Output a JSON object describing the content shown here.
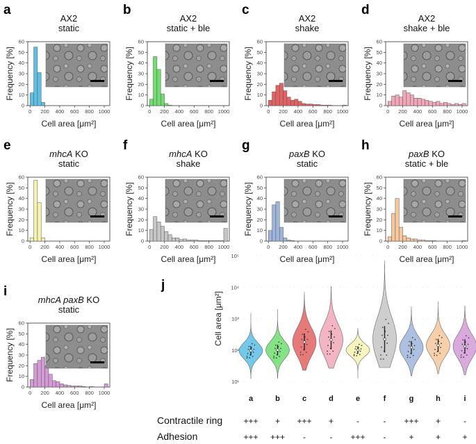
{
  "figure": {
    "panels": [
      {
        "letter": "a",
        "title_line1": "AX2",
        "title_line2": "static",
        "color": "#5bbfe6",
        "values": [
          12,
          55,
          31,
          3,
          0,
          0,
          0,
          0,
          0,
          0,
          0,
          0,
          0,
          0,
          0,
          0,
          0,
          0,
          0,
          0,
          0
        ]
      },
      {
        "letter": "b",
        "title_line1": "AX2",
        "title_line2": "static + ble",
        "color": "#6fde6f",
        "values": [
          6,
          46,
          34,
          11,
          2,
          0.5,
          0,
          0,
          0,
          0,
          0,
          0,
          0,
          0,
          0,
          0,
          0,
          0,
          0,
          0,
          0
        ]
      },
      {
        "letter": "c",
        "title_line1": "AX2",
        "title_line2": "shake",
        "color": "#e46262",
        "values": [
          5,
          13,
          19,
          21,
          14,
          8,
          5,
          6,
          4,
          2,
          1.5,
          1.5,
          1,
          1,
          0.5,
          0.5,
          0.5,
          0,
          0,
          0,
          0.5
        ]
      },
      {
        "letter": "d",
        "title_line1": "AX2",
        "title_line2": "shake + ble",
        "color": "#f2a8b8",
        "values": [
          4,
          9,
          10,
          8,
          14,
          12,
          10,
          7,
          7,
          6,
          5,
          4,
          3,
          4,
          2,
          3,
          2,
          1,
          2,
          1,
          2
        ]
      },
      {
        "letter": "e",
        "title_line1_italic": "mhcA",
        "title_line1": " KO",
        "title_line2": "static",
        "color": "#f6f2b0",
        "values": [
          3,
          57,
          36,
          3,
          0,
          0,
          0,
          0,
          0,
          0,
          0,
          0,
          0,
          0,
          0,
          0,
          0,
          0,
          0,
          0,
          0
        ]
      },
      {
        "letter": "f",
        "title_line1_italic": "mhcA",
        "title_line1": " KO",
        "title_line2": "shake",
        "color": "#c6c6c6",
        "values": [
          11,
          23,
          18,
          14,
          9,
          6,
          3,
          3,
          1.5,
          2,
          1,
          1,
          1,
          0.5,
          0.5,
          0.5,
          0.5,
          0.5,
          0.5,
          0.5,
          12
        ]
      },
      {
        "letter": "g",
        "title_line1_italic": "paxB",
        "title_line1": " KO",
        "title_line2": "static",
        "color": "#9eb6dc",
        "values": [
          10,
          34,
          37,
          13,
          3,
          1,
          0.5,
          0,
          0,
          0,
          0,
          0,
          0,
          0,
          0,
          0,
          0,
          0,
          0,
          0,
          0
        ]
      },
      {
        "letter": "h",
        "title_line1_italic": "paxB",
        "title_line1": " KO",
        "title_line2": "static + ble",
        "color": "#f6c89c",
        "values": [
          4,
          26,
          40,
          13,
          5,
          3,
          2,
          2,
          1,
          1,
          0.5,
          0.5,
          0.5,
          0,
          0,
          0,
          0,
          0,
          0,
          0,
          0.5
        ]
      },
      {
        "letter": "i",
        "title_line1_italic": "mhcA paxB",
        "title_line1": " KO",
        "title_line2": "static",
        "color": "#d49ad8",
        "values": [
          7,
          22,
          25,
          28,
          20,
          12,
          6,
          5,
          3,
          2,
          1.5,
          1,
          1,
          1,
          0.5,
          0,
          0.5,
          0,
          0,
          0,
          3
        ]
      }
    ],
    "hist_axes": {
      "ylabel": "Frequency [%]",
      "xlabel": "Cell area [μm²]",
      "yticks": [
        "0",
        "10",
        "20",
        "30",
        "40",
        "50",
        "60"
      ],
      "xticks": [
        "0",
        "200",
        "400",
        "600",
        "800",
        "1000"
      ],
      "ylim": [
        0,
        60
      ],
      "xlim": [
        -30,
        1075
      ]
    },
    "violin_panel": {
      "letter": "j",
      "ylabel": "Cell area [μm²]",
      "yticks": [
        "10¹",
        "10²",
        "10³",
        "10⁴",
        "10⁵"
      ],
      "groups": [
        "a",
        "b",
        "c",
        "d",
        "e",
        "f",
        "g",
        "h",
        "i"
      ],
      "medians": [
        95,
        100,
        180,
        210,
        100,
        220,
        120,
        140,
        130
      ],
      "rows": [
        {
          "label": "Contractile ring",
          "values": [
            "+++",
            "+",
            "+++",
            "+",
            "-",
            "-",
            "+++",
            "+",
            "-"
          ]
        },
        {
          "label": "Adhesion",
          "values": [
            "+++",
            "+++",
            "-",
            "-",
            "+++",
            "-",
            "+",
            "+",
            "+"
          ]
        }
      ]
    }
  }
}
